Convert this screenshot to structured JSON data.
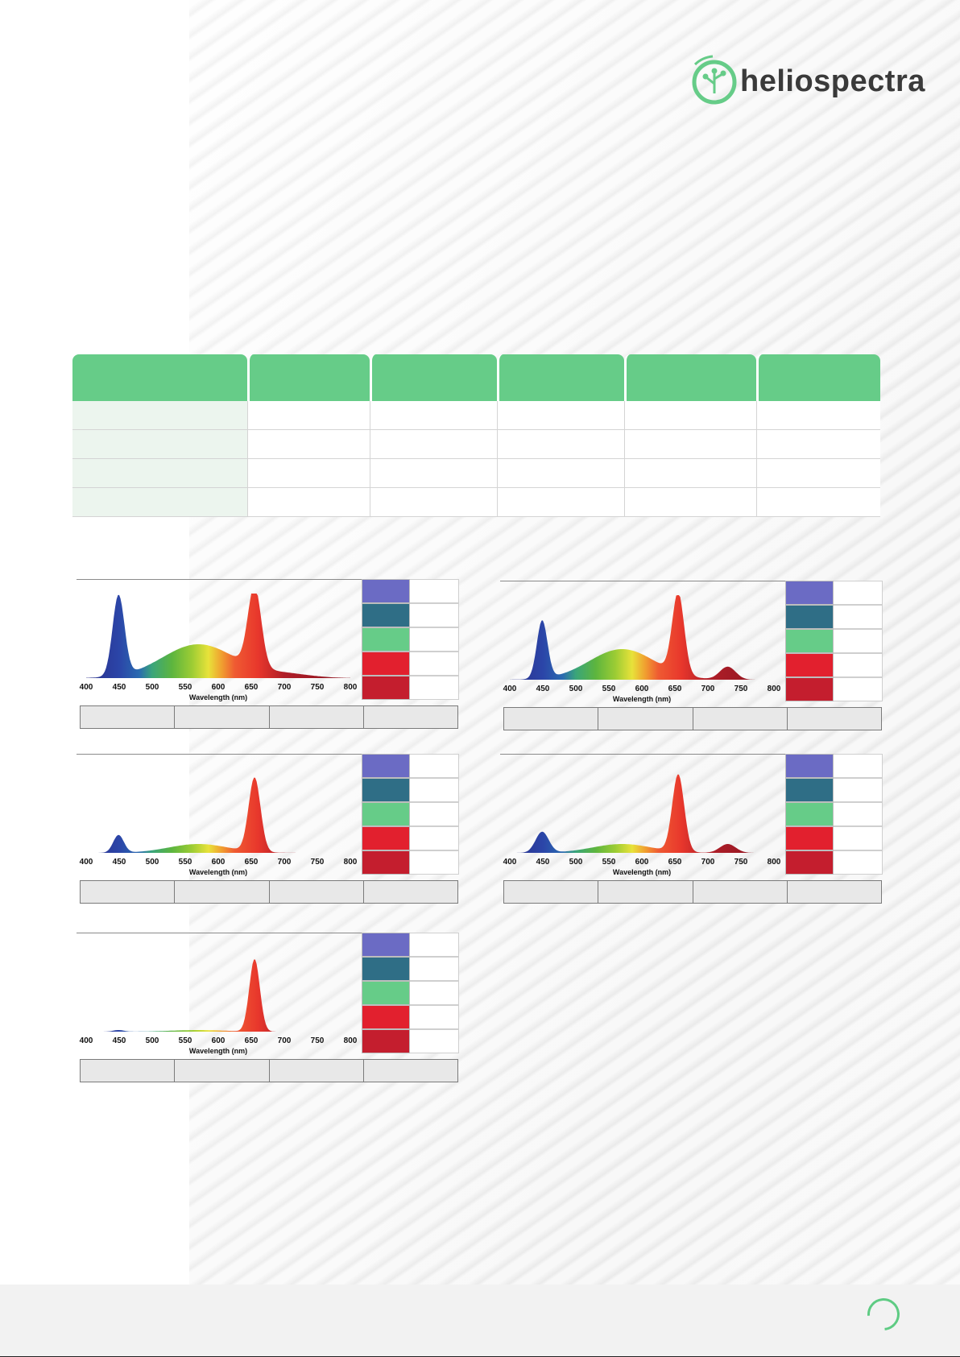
{
  "brand": {
    "logo_text": "heliospectra",
    "accent": "#66cc88",
    "dark": "#3a3a3a"
  },
  "spectrum_colors": [
    "#6b6bc4",
    "#2f6e86",
    "#66cc88",
    "#e2202e",
    "#c41e2e"
  ],
  "chart_data": [
    {
      "type": "area",
      "xlabel": "Wavelength (nm)",
      "x_ticks": [
        400,
        450,
        500,
        550,
        600,
        650,
        700,
        750,
        800
      ],
      "xlim": [
        400,
        800
      ],
      "peaks": [
        {
          "center": 449,
          "height": 1.0,
          "width": 9
        },
        {
          "center": 570,
          "height": 0.42,
          "width": 55
        },
        {
          "center": 655,
          "height": 1.0,
          "width": 10
        },
        {
          "center": 700,
          "height": 0.05,
          "width": 40
        }
      ]
    },
    {
      "type": "area",
      "xlabel": "Wavelength (nm)",
      "x_ticks": [
        400,
        450,
        500,
        550,
        600,
        650,
        700,
        750,
        800
      ],
      "xlim": [
        400,
        800
      ],
      "peaks": [
        {
          "center": 449,
          "height": 0.72,
          "width": 8
        },
        {
          "center": 570,
          "height": 0.38,
          "width": 50
        },
        {
          "center": 655,
          "height": 1.0,
          "width": 9
        },
        {
          "center": 730,
          "height": 0.16,
          "width": 12
        }
      ]
    },
    {
      "type": "area",
      "xlabel": "Wavelength (nm)",
      "x_ticks": [
        400,
        450,
        500,
        550,
        600,
        650,
        700,
        750,
        800
      ],
      "xlim": [
        400,
        800
      ],
      "peaks": [
        {
          "center": 449,
          "height": 0.22,
          "width": 8
        },
        {
          "center": 570,
          "height": 0.11,
          "width": 45
        },
        {
          "center": 655,
          "height": 0.92,
          "width": 9
        }
      ]
    },
    {
      "type": "area",
      "xlabel": "Wavelength (nm)",
      "x_ticks": [
        400,
        450,
        500,
        550,
        600,
        650,
        700,
        750,
        800
      ],
      "xlim": [
        400,
        800
      ],
      "peaks": [
        {
          "center": 449,
          "height": 0.26,
          "width": 10
        },
        {
          "center": 570,
          "height": 0.11,
          "width": 45
        },
        {
          "center": 655,
          "height": 0.96,
          "width": 9
        },
        {
          "center": 730,
          "height": 0.11,
          "width": 12
        }
      ]
    },
    {
      "type": "area",
      "xlabel": "Wavelength (nm)",
      "x_ticks": [
        400,
        450,
        500,
        550,
        600,
        650,
        700,
        750,
        800
      ],
      "xlim": [
        400,
        800
      ],
      "peaks": [
        {
          "center": 449,
          "height": 0.02,
          "width": 8
        },
        {
          "center": 570,
          "height": 0.02,
          "width": 40
        },
        {
          "center": 655,
          "height": 0.9,
          "width": 8
        }
      ]
    }
  ]
}
